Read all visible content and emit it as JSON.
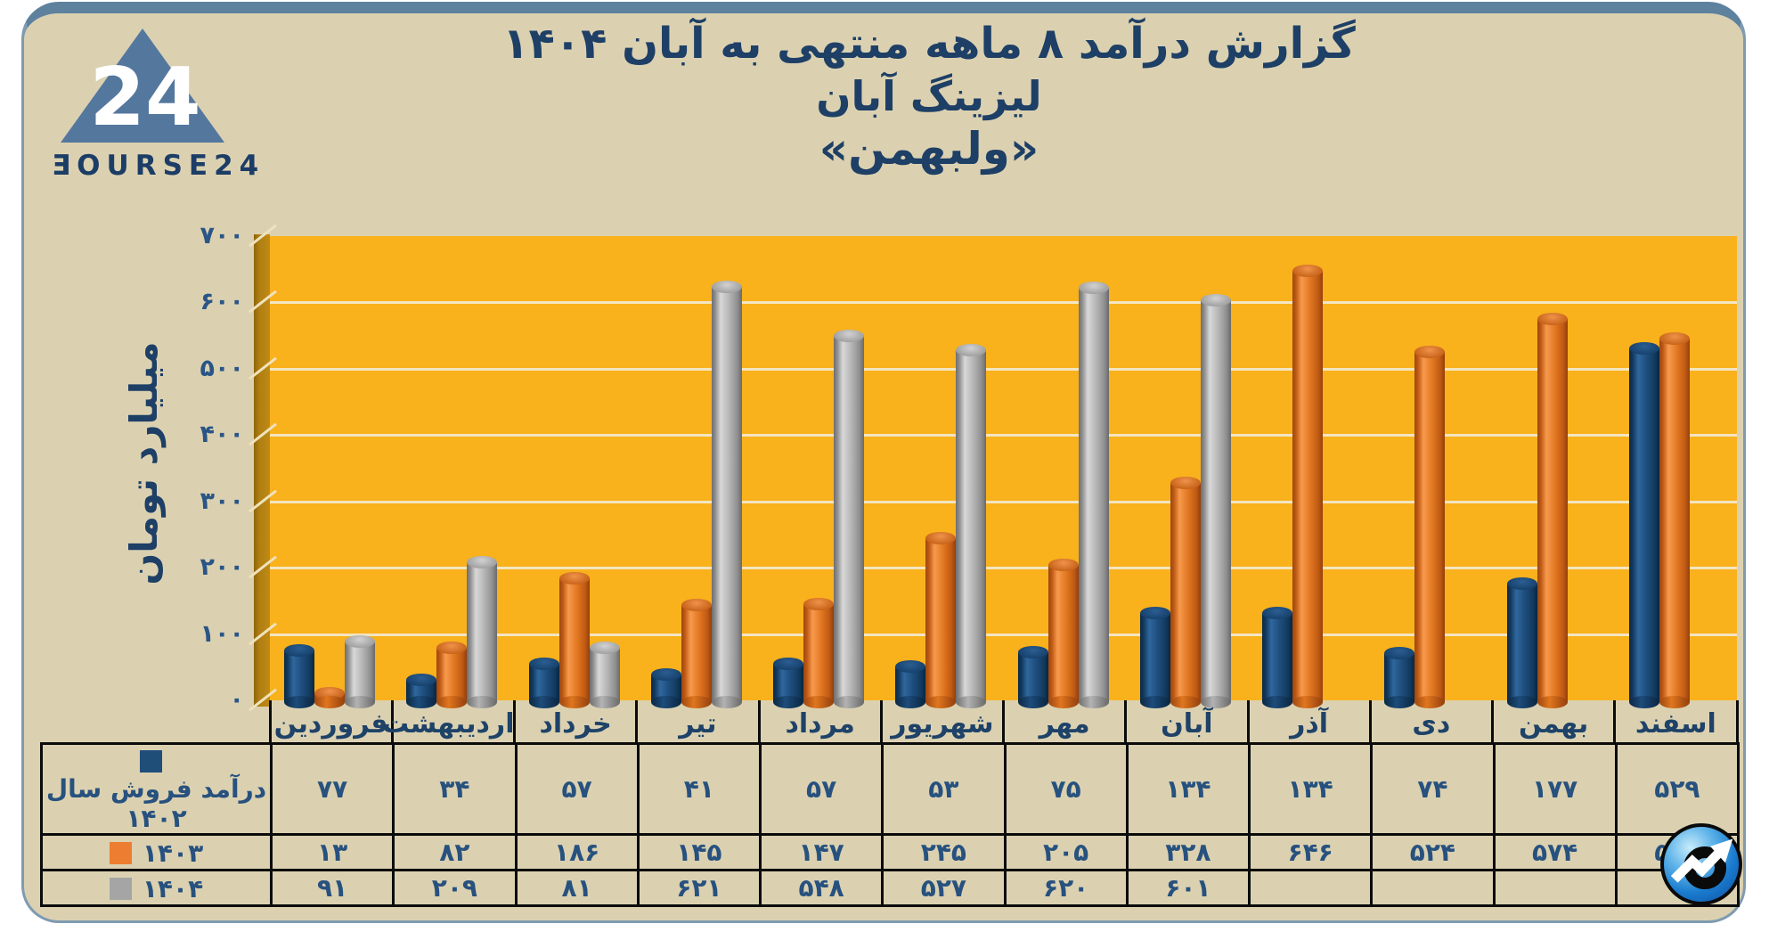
{
  "brand": {
    "wordmark": "ƎOURSE24",
    "logo_number": "24"
  },
  "title": {
    "line1": "گزارش  درآمد ۸ ماهه منتهی به آبان ۱۴۰۴",
    "line2": "لیزینگ آبان",
    "line3": "«ولبهمن»"
  },
  "chart_data": {
    "type": "bar",
    "style": "3d-cylinder",
    "title": "گزارش درآمد ۸ ماهه منتهی به آبان ۱۴۰۴ - لیزینگ آبان - «ولبهمن»",
    "xlabel": "",
    "ylabel": "میلیارد تومان",
    "ylim": [
      0,
      700
    ],
    "ytick_step": 100,
    "grid": true,
    "legend_position": "table-left",
    "plot_background": "#F9B11C",
    "gridline_color": "#F3E5C0",
    "yticks_display": [
      "۷۰۰",
      "۶۰۰",
      "۵۰۰",
      "۴۰۰",
      "۳۰۰",
      "۲۰۰",
      "۱۰۰",
      "۰"
    ],
    "categories": [
      "فروردین",
      "اردیبهشت",
      "خرداد",
      "تیر",
      "مرداد",
      "شهریور",
      "مهر",
      "آبان",
      "آذر",
      "دی",
      "بهمن",
      "اسفند"
    ],
    "series": [
      {
        "name": "درآمد فروش سال ۱۴۰۲",
        "color": "#1F4E79",
        "values": [
          77,
          34,
          57,
          41,
          57,
          53,
          75,
          134,
          134,
          74,
          177,
          529
        ],
        "display": [
          "۷۷",
          "۳۴",
          "۵۷",
          "۴۱",
          "۵۷",
          "۵۳",
          "۷۵",
          "۱۳۴",
          "۱۳۴",
          "۷۴",
          "۱۷۷",
          "۵۲۹"
        ]
      },
      {
        "name": "۱۴۰۳",
        "color": "#ED7D31",
        "values": [
          13,
          82,
          186,
          145,
          147,
          245,
          205,
          328,
          646,
          524,
          574,
          544
        ],
        "display": [
          "۱۳",
          "۸۲",
          "۱۸۶",
          "۱۴۵",
          "۱۴۷",
          "۲۴۵",
          "۲۰۵",
          "۳۲۸",
          "۶۴۶",
          "۵۲۴",
          "۵۷۴",
          "۵۴۴"
        ]
      },
      {
        "name": "۱۴۰۴",
        "color": "#A5A5A5",
        "values": [
          91,
          209,
          81,
          621,
          548,
          527,
          620,
          601,
          null,
          null,
          null,
          null
        ],
        "display": [
          "۹۱",
          "۲۰۹",
          "۸۱",
          "۶۲۱",
          "۵۴۸",
          "۵۲۷",
          "۶۲۰",
          "۶۰۱",
          "",
          "",
          "",
          ""
        ]
      }
    ]
  },
  "colors": {
    "card_background": "#DBD1B1",
    "frame_blue": "#5E819E",
    "title_navy": "#1E3F66",
    "table_text": "#27517E",
    "plot_orange": "#F9B11C",
    "wall_dark": "#B07F12"
  }
}
